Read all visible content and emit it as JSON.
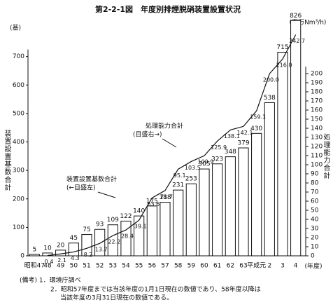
{
  "chart_data": {
    "type": "bar_line",
    "title": "第2-2-1図　年度別排煙脱硝装置設置状況",
    "y_unit": "(基)",
    "y2_unit": "(百万Nm³/h)",
    "ylabel": "装置設置基数合計",
    "y2label": "処理能力合計",
    "x_unit": "(年度)",
    "annotations": [
      "処理能力合計",
      "(目盛右→)",
      "装置設置基数合計",
      "(←目盛左)"
    ],
    "notes": [
      "(備考) 1．環境庁調べ",
      "2．昭和57年度までは当該年度の1月1日現在の数値であり、58年度以降は",
      "当該年度の3月31日現在の数値である。"
    ],
    "categories": [
      "昭和47",
      "48",
      "49",
      "50",
      "51",
      "52",
      "53",
      "54",
      "55",
      "56",
      "57",
      "58",
      "59",
      "60",
      "61",
      "62",
      "63",
      "平成元",
      "2",
      "3",
      "4"
    ],
    "series": [
      {
        "name": "装置設置基数合計",
        "color": "#ffffff",
        "values": [
          5,
          10,
          20,
          45,
          75,
          93,
          109,
          122,
          140,
          175,
          188,
          231,
          253,
          305,
          323,
          348,
          379,
          430,
          538,
          715,
          826
        ]
      },
      {
        "name": "処理能力合計",
        "color": "#111111",
        "axis": "y2",
        "values": [
          null,
          0.4,
          2.1,
          4.3,
          8.2,
          13.7,
          22.2,
          28.4,
          39.1,
          63.6,
          71.7,
          95.1,
          103.5,
          109.9,
          125.9,
          138.1,
          142.1,
          159.1,
          200.0,
          216.0,
          242.7
        ],
        "value_labels": [
          null,
          "0.4",
          "2.1",
          "4.3",
          "8.2",
          "13.7",
          "22.2",
          "28.4",
          "39.1",
          "63.6",
          "71.7",
          "95.1",
          "103.5",
          "109.9",
          "125.9",
          "138.1",
          "142.1",
          "159.1",
          "200.0",
          "216.0",
          "242.7"
        ]
      }
    ],
    "ylim": [
      0,
      800
    ],
    "yticks": [
      0,
      100,
      200,
      300,
      400,
      500,
      600,
      700
    ],
    "y2lim": [
      0,
      250
    ],
    "y2ticks": [
      0,
      10,
      20,
      30,
      40,
      50,
      60,
      70,
      80,
      90,
      100,
      110,
      120,
      130,
      140,
      150,
      160,
      170,
      180,
      190,
      200
    ]
  }
}
